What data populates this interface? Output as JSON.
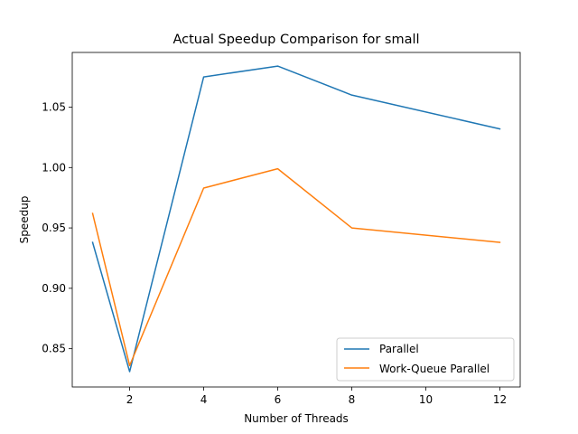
{
  "chart_data": {
    "type": "line",
    "title": "Actual Speedup Comparison for small",
    "xlabel": "Number of Threads",
    "ylabel": "Speedup",
    "x": [
      1,
      2,
      4,
      6,
      8,
      12
    ],
    "xticks": [
      2,
      4,
      6,
      8,
      10,
      12
    ],
    "xlim": [
      0.45,
      12.55
    ],
    "yticks": [
      0.85,
      0.9,
      0.95,
      1.0,
      1.05
    ],
    "ytick_labels": [
      "0.85",
      "0.90",
      "0.95",
      "1.00",
      "1.05"
    ],
    "ylim": [
      0.8183,
      1.0953
    ],
    "grid": false,
    "legend_position": "lower-right",
    "series": [
      {
        "name": "Parallel",
        "color": "#1f77b4",
        "values": [
          0.938,
          0.831,
          1.075,
          1.084,
          1.06,
          1.032
        ]
      },
      {
        "name": "Work-Queue Parallel",
        "color": "#ff7f0e",
        "values": [
          0.962,
          0.836,
          0.983,
          0.999,
          0.95,
          0.938
        ]
      }
    ]
  }
}
